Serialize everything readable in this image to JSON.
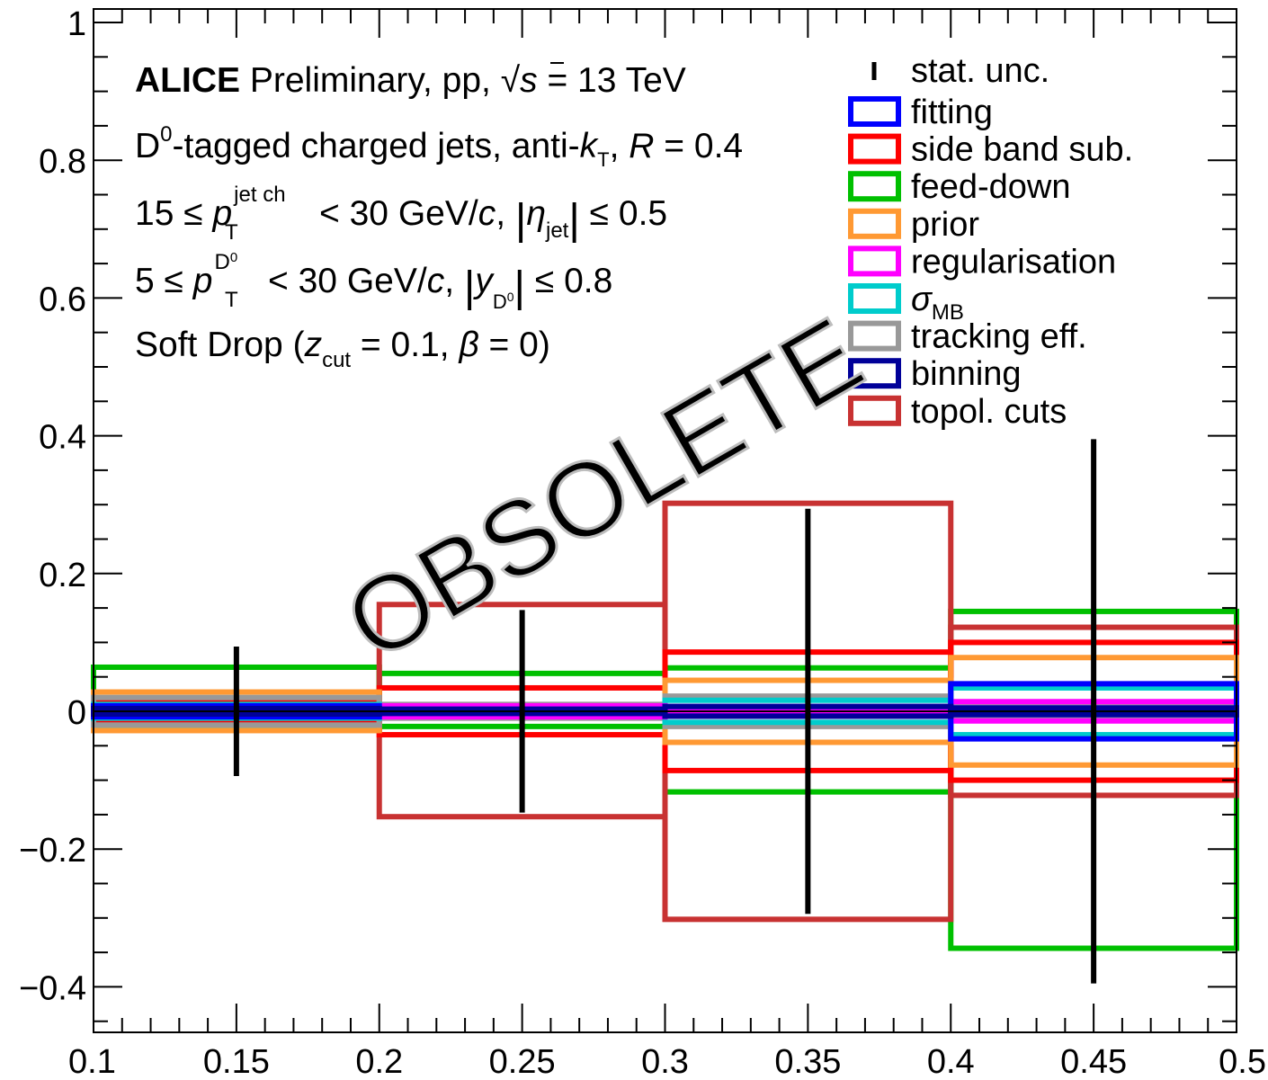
{
  "chart_data": {
    "type": "bar",
    "xlim": [
      0.1,
      0.5
    ],
    "ylim": [
      -0.47,
      1.02
    ],
    "x_ticks": [
      "0.1",
      "0.15",
      "0.2",
      "0.25",
      "0.3",
      "0.35",
      "0.4",
      "0.45",
      "0.5"
    ],
    "y_ticks": [
      "−0.4",
      "−0.2",
      "0",
      "0.2",
      "0.4",
      "0.6",
      "0.8",
      "1"
    ],
    "y_tick_values": [
      -0.4,
      -0.2,
      0,
      0.2,
      0.4,
      0.6,
      0.8,
      1.0
    ],
    "x_tick_values": [
      0.1,
      0.15,
      0.2,
      0.25,
      0.3,
      0.35,
      0.4,
      0.45,
      0.5
    ],
    "bins": [
      {
        "lo": 0.1,
        "hi": 0.2,
        "center": 0.15
      },
      {
        "lo": 0.2,
        "hi": 0.3,
        "center": 0.25
      },
      {
        "lo": 0.3,
        "hi": 0.4,
        "center": 0.35
      },
      {
        "lo": 0.4,
        "hi": 0.5,
        "center": 0.45
      }
    ],
    "stat_unc": [
      0.094,
      0.147,
      0.294,
      0.395
    ],
    "series": [
      {
        "name": "feed-down",
        "color": "#00c000",
        "values": [
          0.064,
          0.055,
          0.063,
          0.145
        ],
        "lower": [
          -0.02,
          -0.022,
          -0.117,
          -0.344
        ]
      },
      {
        "name": "topol. cuts",
        "color": "#c83232",
        "values": [
          0.017,
          0.155,
          0.302,
          0.122
        ],
        "lower": [
          -0.017,
          -0.153,
          -0.302,
          -0.122
        ]
      },
      {
        "name": "side band sub.",
        "color": "#ff0000",
        "values": [
          0.012,
          0.034,
          0.086,
          0.1
        ],
        "lower": [
          -0.012,
          -0.034,
          -0.086,
          -0.1
        ]
      },
      {
        "name": "prior",
        "color": "#ff9933",
        "values": [
          0.028,
          0.005,
          0.045,
          0.078
        ],
        "lower": [
          -0.028,
          -0.005,
          -0.045,
          -0.078
        ]
      },
      {
        "name": "tracking eff.",
        "color": "#999999",
        "values": [
          0.02,
          0.01,
          0.022,
          0.013
        ],
        "lower": [
          -0.02,
          -0.01,
          -0.022,
          -0.013
        ]
      },
      {
        "name": "σ_MB",
        "color": "#00cccc",
        "values": [
          0.01,
          0.004,
          0.016,
          0.034
        ],
        "lower": [
          -0.01,
          -0.004,
          -0.016,
          -0.034
        ]
      },
      {
        "name": "regularisation",
        "color": "#ff00ff",
        "values": [
          0.004,
          0.008,
          0.004,
          0.014
        ],
        "lower": [
          -0.004,
          -0.008,
          -0.004,
          -0.014
        ]
      },
      {
        "name": "fitting",
        "color": "#0000ff",
        "values": [
          0.008,
          0.003,
          0.007,
          0.04
        ],
        "lower": [
          -0.008,
          -0.003,
          -0.007,
          -0.04
        ]
      },
      {
        "name": "binning",
        "color": "#000099",
        "values": [
          0.004,
          0.003,
          0.007,
          0.005
        ],
        "lower": [
          -0.004,
          -0.003,
          -0.007,
          -0.005
        ]
      }
    ],
    "legend": {
      "placement": "top-right",
      "stat_label": "stat. unc.",
      "entries": [
        {
          "label": "fitting",
          "color": "#0000ff"
        },
        {
          "label": "side band sub.",
          "color": "#ff0000"
        },
        {
          "label": "feed-down",
          "color": "#00c000"
        },
        {
          "label": "prior",
          "color": "#ff9933"
        },
        {
          "label": "regularisation",
          "color": "#ff00ff"
        },
        {
          "label": "σ",
          "sub": "MB",
          "color": "#00cccc"
        },
        {
          "label": "tracking eff.",
          "color": "#999999"
        },
        {
          "label": "binning",
          "color": "#000099"
        },
        {
          "label": "topol. cuts",
          "color": "#c83232"
        }
      ]
    },
    "annotations": {
      "line1_bold": "ALICE",
      "line1": " Preliminary, pp, ",
      "line1_sqrt": "√",
      "line1_s": "s",
      "line1_end": " = 13 TeV",
      "line2_a": "D",
      "line2_sup": "0",
      "line2_b": "-tagged charged jets, anti-",
      "line2_k": "k",
      "line2_ksub": "T",
      "line2_c": ", ",
      "line2_R": "R",
      "line2_d": " = 0.4",
      "line3_a": "15 ≤ ",
      "line3_p": "p",
      "line3_sup": "jet ch",
      "line3_sub": "T",
      "line3_b": " < 30 GeV/",
      "line3_c": "c",
      "line3_d": ", ",
      "line3_bar": "|",
      "line3_eta": "η",
      "line3_etasub": "jet",
      "line3_e": " ≤ 0.5",
      "line4_a": "5 ≤ ",
      "line4_p": "p",
      "line4_sup": "D",
      "line4_supsup": "0",
      "line4_sub": "T",
      "line4_b": " < 30 GeV/",
      "line4_c": "c",
      "line4_d": ", ",
      "line4_y": "y",
      "line4_ysub": "D",
      "line4_ysubsup": "0",
      "line4_e": " ≤ 0.8",
      "line5_a": "Soft Drop (",
      "line5_z": "z",
      "line5_zsub": "cut",
      "line5_b": " = 0.1, ",
      "line5_beta": "β",
      "line5_c": " = 0)"
    },
    "watermark": "OBSOLETE"
  }
}
